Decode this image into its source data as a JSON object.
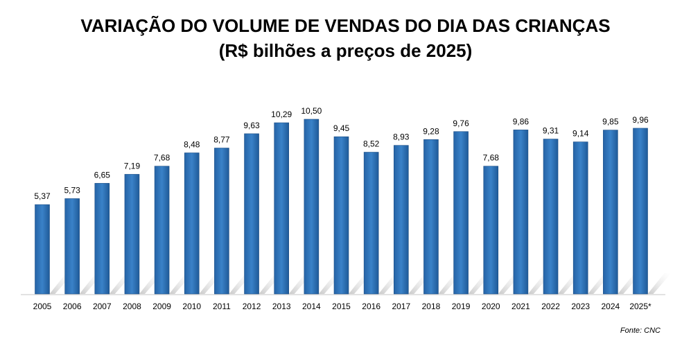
{
  "chart_data": {
    "type": "bar",
    "title": "VARIAÇÃO DO VOLUME DE VENDAS DO DIA DAS CRIANÇAS",
    "subtitle": "(R$ bilhões a preços de 2025)",
    "xlabel": "",
    "ylabel": "",
    "ylim": [
      0,
      10.5
    ],
    "grid": false,
    "categories": [
      "2005",
      "2006",
      "2007",
      "2008",
      "2009",
      "2010",
      "2011",
      "2012",
      "2013",
      "2014",
      "2015",
      "2016",
      "2017",
      "2018",
      "2019",
      "2020",
      "2021",
      "2022",
      "2023",
      "2024",
      "2025*"
    ],
    "values": [
      5.37,
      5.73,
      6.65,
      7.19,
      7.68,
      8.48,
      8.77,
      9.63,
      10.29,
      10.5,
      9.45,
      8.52,
      8.93,
      9.28,
      9.76,
      7.68,
      9.86,
      9.31,
      9.14,
      9.85,
      9.96
    ],
    "labels": [
      "5,37",
      "5,73",
      "6,65",
      "7,19",
      "7,68",
      "8,48",
      "8,77",
      "9,63",
      "10,29",
      "10,50",
      "9,45",
      "8,52",
      "8,93",
      "9,28",
      "9,76",
      "7,68",
      "9,86",
      "9,31",
      "9,14",
      "9,85",
      "9,96"
    ],
    "bar_color": "#2e75b6",
    "source": "Fonte: CNC"
  }
}
